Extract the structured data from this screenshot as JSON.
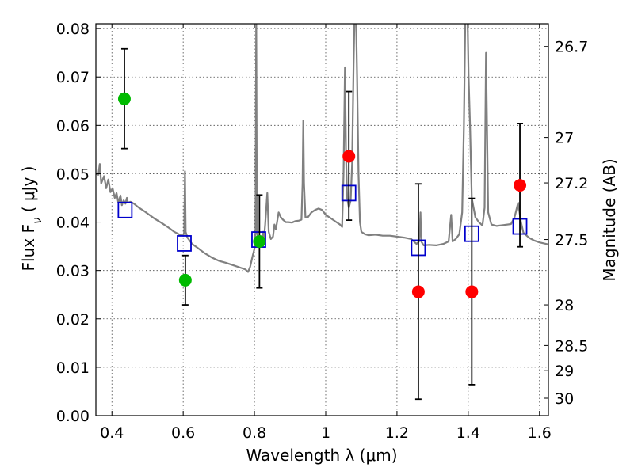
{
  "chart_data": {
    "type": "scatter",
    "xlabel": "Wavelength  λ (μm)",
    "ylabel": "Flux  F",
    "ylabel_sub": "ν",
    "ylabel_unit": "  ( μJy )",
    "y2label": "Magnitude (AB)",
    "xlim": [
      0.355,
      1.625
    ],
    "ylim": [
      0.0,
      0.081
    ],
    "grid": true,
    "x_ticks": [
      {
        "value": 0.4,
        "label": "0.4"
      },
      {
        "value": 0.6,
        "label": "0.6"
      },
      {
        "value": 0.8,
        "label": "0.8"
      },
      {
        "value": 1.0,
        "label": "1"
      },
      {
        "value": 1.2,
        "label": "1.2"
      },
      {
        "value": 1.4,
        "label": "1.4"
      },
      {
        "value": 1.6,
        "label": "1.6"
      }
    ],
    "y_ticks": [
      {
        "value": 0.0,
        "label": "0.00"
      },
      {
        "value": 0.01,
        "label": "0.01"
      },
      {
        "value": 0.02,
        "label": "0.02"
      },
      {
        "value": 0.03,
        "label": "0.03"
      },
      {
        "value": 0.04,
        "label": "0.04"
      },
      {
        "value": 0.05,
        "label": "0.05"
      },
      {
        "value": 0.06,
        "label": "0.06"
      },
      {
        "value": 0.07,
        "label": "0.07"
      },
      {
        "value": 0.08,
        "label": "0.08"
      }
    ],
    "y2_ticks": [
      {
        "flux": 0.0763,
        "label": "26.7"
      },
      {
        "flux": 0.0575,
        "label": "27"
      },
      {
        "flux": 0.0481,
        "label": "27.2"
      },
      {
        "flux": 0.0364,
        "label": "27.5"
      },
      {
        "flux": 0.0229,
        "label": "28"
      },
      {
        "flux": 0.0145,
        "label": "28.5"
      },
      {
        "flux": 0.0093,
        "label": "29"
      },
      {
        "flux": 0.0036,
        "label": "30"
      }
    ],
    "observed_points": [
      {
        "x": 0.435,
        "y": 0.0655,
        "yerr_low": 0.0552,
        "yerr_high": 0.0758,
        "color": "#00bb00"
      },
      {
        "x": 0.606,
        "y": 0.028,
        "yerr_low": 0.0229,
        "yerr_high": 0.0331,
        "color": "#00bb00"
      },
      {
        "x": 0.814,
        "y": 0.036,
        "yerr_low": 0.0264,
        "yerr_high": 0.0456,
        "color": "#00bb00"
      },
      {
        "x": 1.065,
        "y": 0.0536,
        "yerr_low": 0.0404,
        "yerr_high": 0.067,
        "color": "#ff0000"
      },
      {
        "x": 1.26,
        "y": 0.0256,
        "yerr_low": 0.0034,
        "yerr_high": 0.0479,
        "color": "#ff0000"
      },
      {
        "x": 1.41,
        "y": 0.0256,
        "yerr_low": 0.0064,
        "yerr_high": 0.0449,
        "color": "#ff0000"
      },
      {
        "x": 1.545,
        "y": 0.0476,
        "yerr_low": 0.0349,
        "yerr_high": 0.0604,
        "color": "#ff0000"
      }
    ],
    "model_points": [
      {
        "x": 0.437,
        "y": 0.0425
      },
      {
        "x": 0.603,
        "y": 0.0356
      },
      {
        "x": 0.812,
        "y": 0.0364
      },
      {
        "x": 1.065,
        "y": 0.046
      },
      {
        "x": 1.26,
        "y": 0.0347
      },
      {
        "x": 1.41,
        "y": 0.0376
      },
      {
        "x": 1.545,
        "y": 0.0391
      }
    ],
    "spectrum": [
      [
        0.355,
        0.05
      ],
      [
        0.362,
        0.0498
      ],
      [
        0.366,
        0.052
      ],
      [
        0.37,
        0.048
      ],
      [
        0.378,
        0.0495
      ],
      [
        0.384,
        0.047
      ],
      [
        0.39,
        0.0488
      ],
      [
        0.396,
        0.0462
      ],
      [
        0.402,
        0.047
      ],
      [
        0.408,
        0.045
      ],
      [
        0.413,
        0.046
      ],
      [
        0.418,
        0.044
      ],
      [
        0.424,
        0.0455
      ],
      [
        0.428,
        0.0435
      ],
      [
        0.433,
        0.0445
      ],
      [
        0.438,
        0.0438
      ],
      [
        0.442,
        0.045
      ],
      [
        0.445,
        0.044
      ],
      [
        0.452,
        0.0442
      ],
      [
        0.462,
        0.0438
      ],
      [
        0.475,
        0.043
      ],
      [
        0.49,
        0.0423
      ],
      [
        0.505,
        0.0415
      ],
      [
        0.52,
        0.0407
      ],
      [
        0.54,
        0.0398
      ],
      [
        0.56,
        0.0388
      ],
      [
        0.575,
        0.038
      ],
      [
        0.59,
        0.0374
      ],
      [
        0.6,
        0.0372
      ],
      [
        0.603,
        0.038
      ],
      [
        0.605,
        0.0505
      ],
      [
        0.607,
        0.038
      ],
      [
        0.612,
        0.0368
      ],
      [
        0.625,
        0.0355
      ],
      [
        0.64,
        0.0347
      ],
      [
        0.66,
        0.0336
      ],
      [
        0.68,
        0.0327
      ],
      [
        0.7,
        0.032
      ],
      [
        0.72,
        0.0316
      ],
      [
        0.74,
        0.0311
      ],
      [
        0.76,
        0.0306
      ],
      [
        0.775,
        0.0302
      ],
      [
        0.782,
        0.0297
      ],
      [
        0.788,
        0.0308
      ],
      [
        0.795,
        0.033
      ],
      [
        0.8,
        0.0345
      ],
      [
        0.803,
        0.038
      ],
      [
        0.805,
        0.083
      ],
      [
        0.807,
        0.038
      ],
      [
        0.812,
        0.0355
      ],
      [
        0.816,
        0.0365
      ],
      [
        0.82,
        0.035
      ],
      [
        0.824,
        0.038
      ],
      [
        0.827,
        0.0368
      ],
      [
        0.83,
        0.0395
      ],
      [
        0.836,
        0.046
      ],
      [
        0.84,
        0.038
      ],
      [
        0.846,
        0.0365
      ],
      [
        0.852,
        0.037
      ],
      [
        0.856,
        0.0395
      ],
      [
        0.86,
        0.0385
      ],
      [
        0.868,
        0.042
      ],
      [
        0.874,
        0.041
      ],
      [
        0.88,
        0.0405
      ],
      [
        0.888,
        0.04
      ],
      [
        0.895,
        0.04
      ],
      [
        0.905,
        0.0399
      ],
      [
        0.915,
        0.0402
      ],
      [
        0.925,
        0.0403
      ],
      [
        0.932,
        0.0405
      ],
      [
        0.935,
        0.048
      ],
      [
        0.937,
        0.061
      ],
      [
        0.939,
        0.048
      ],
      [
        0.943,
        0.041
      ],
      [
        0.95,
        0.041
      ],
      [
        0.96,
        0.042
      ],
      [
        0.97,
        0.0425
      ],
      [
        0.98,
        0.0428
      ],
      [
        0.99,
        0.0425
      ],
      [
        1.0,
        0.0415
      ],
      [
        1.01,
        0.041
      ],
      [
        1.02,
        0.0405
      ],
      [
        1.03,
        0.04
      ],
      [
        1.04,
        0.0395
      ],
      [
        1.046,
        0.039
      ],
      [
        1.05,
        0.05
      ],
      [
        1.054,
        0.072
      ],
      [
        1.057,
        0.054
      ],
      [
        1.06,
        0.045
      ],
      [
        1.065,
        0.043
      ],
      [
        1.07,
        0.0445
      ],
      [
        1.074,
        0.052
      ],
      [
        1.078,
        0.072
      ],
      [
        1.081,
        0.083
      ],
      [
        1.085,
        0.083
      ],
      [
        1.088,
        0.07
      ],
      [
        1.092,
        0.05
      ],
      [
        1.096,
        0.04
      ],
      [
        1.1,
        0.038
      ],
      [
        1.11,
        0.0375
      ],
      [
        1.12,
        0.0373
      ],
      [
        1.14,
        0.0374
      ],
      [
        1.16,
        0.0372
      ],
      [
        1.18,
        0.0372
      ],
      [
        1.2,
        0.037
      ],
      [
        1.22,
        0.0368
      ],
      [
        1.24,
        0.0365
      ],
      [
        1.255,
        0.0355
      ],
      [
        1.262,
        0.036
      ],
      [
        1.266,
        0.042
      ],
      [
        1.268,
        0.036
      ],
      [
        1.275,
        0.0352
      ],
      [
        1.29,
        0.0353
      ],
      [
        1.31,
        0.0352
      ],
      [
        1.33,
        0.0355
      ],
      [
        1.345,
        0.036
      ],
      [
        1.352,
        0.0415
      ],
      [
        1.356,
        0.036
      ],
      [
        1.365,
        0.0365
      ],
      [
        1.375,
        0.0375
      ],
      [
        1.383,
        0.042
      ],
      [
        1.388,
        0.06
      ],
      [
        1.392,
        0.083
      ],
      [
        1.398,
        0.083
      ],
      [
        1.401,
        0.07
      ],
      [
        1.405,
        0.06
      ],
      [
        1.41,
        0.045
      ],
      [
        1.42,
        0.041
      ],
      [
        1.43,
        0.04
      ],
      [
        1.44,
        0.0393
      ],
      [
        1.446,
        0.043
      ],
      [
        1.45,
        0.075
      ],
      [
        1.453,
        0.058
      ],
      [
        1.456,
        0.042
      ],
      [
        1.465,
        0.0395
      ],
      [
        1.48,
        0.0392
      ],
      [
        1.5,
        0.0394
      ],
      [
        1.52,
        0.0396
      ],
      [
        1.53,
        0.041
      ],
      [
        1.54,
        0.044
      ],
      [
        1.548,
        0.04
      ],
      [
        1.555,
        0.0378
      ],
      [
        1.57,
        0.0368
      ],
      [
        1.585,
        0.0362
      ],
      [
        1.6,
        0.0358
      ],
      [
        1.625,
        0.0354
      ]
    ]
  }
}
